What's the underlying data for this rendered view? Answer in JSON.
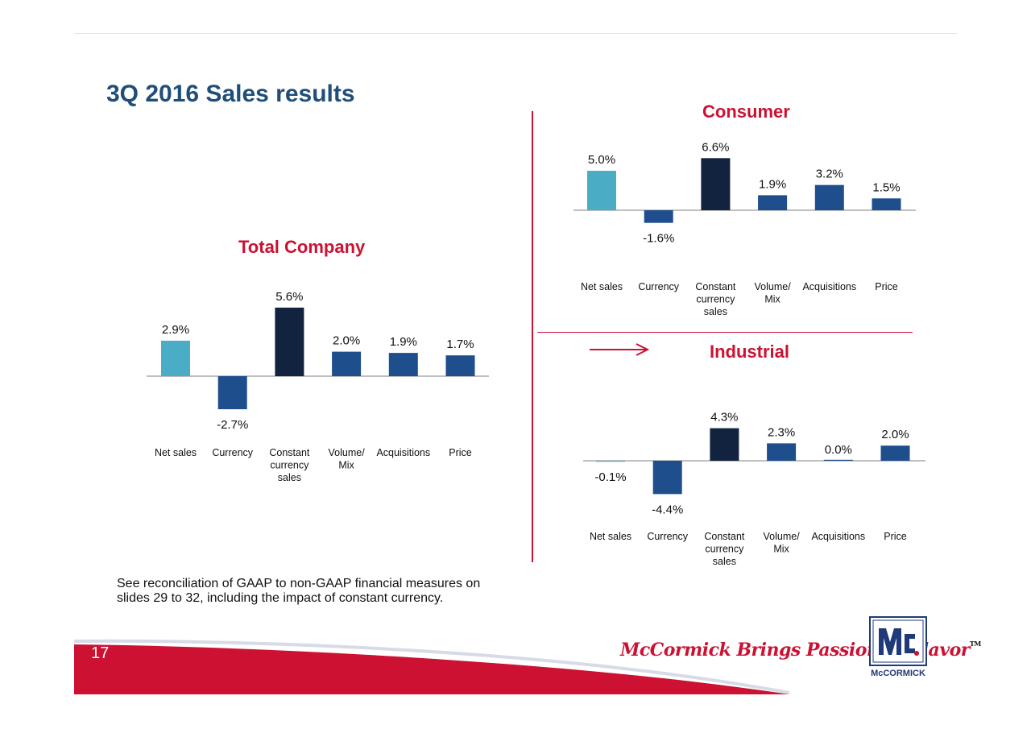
{
  "slide": {
    "title": "3Q 2016 Sales results",
    "footnote_line1": "See reconciliation of GAAP to non-GAAP financial measures on",
    "footnote_line2": "slides 29 to 32, including the impact of constant currency.",
    "page_number": "17",
    "tagline": "McCormick Brings Passion to Flavor",
    "tagline_mark": "TM",
    "logo_text": "McCORMICK"
  },
  "colors": {
    "net_sales": "#4bacc6",
    "constant_currency": "#12233f",
    "other": "#1f4e8c",
    "title_red": "#cc1133",
    "heading_blue": "#1f4e79"
  },
  "chart_data": [
    {
      "id": "total",
      "type": "bar",
      "title": "Total Company",
      "categories": [
        [
          "Net sales"
        ],
        [
          "Currency"
        ],
        [
          "Constant",
          "currency",
          "sales"
        ],
        [
          "Volume/",
          "Mix"
        ],
        [
          "Acquisitions"
        ],
        [
          "Price"
        ]
      ],
      "values": [
        2.9,
        -2.7,
        5.6,
        2.0,
        1.9,
        1.7
      ],
      "labels": [
        "2.9%",
        "-2.7%",
        "5.6%",
        "2.0%",
        "1.9%",
        "1.7%"
      ],
      "unit": "%",
      "grid": false,
      "legend": "none"
    },
    {
      "id": "consumer",
      "type": "bar",
      "title": "Consumer",
      "categories": [
        [
          "Net sales"
        ],
        [
          "Currency"
        ],
        [
          "Constant",
          "currency",
          "sales"
        ],
        [
          "Volume/",
          "Mix"
        ],
        [
          "Acquisitions"
        ],
        [
          "Price"
        ]
      ],
      "values": [
        5.0,
        -1.6,
        6.6,
        1.9,
        3.2,
        1.5
      ],
      "labels": [
        "5.0%",
        "-1.6%",
        "6.6%",
        "1.9%",
        "3.2%",
        "1.5%"
      ],
      "unit": "%",
      "grid": false,
      "legend": "none"
    },
    {
      "id": "industrial",
      "type": "bar",
      "title": "Industrial",
      "categories": [
        [
          "Net sales"
        ],
        [
          "Currency"
        ],
        [
          "Constant",
          "currency",
          "sales"
        ],
        [
          "Volume/",
          "Mix"
        ],
        [
          "Acquisitions"
        ],
        [
          "Price"
        ]
      ],
      "values": [
        -0.1,
        -4.4,
        4.3,
        2.3,
        0.0,
        2.0
      ],
      "labels": [
        "-0.1%",
        "-4.4%",
        "4.3%",
        "2.3%",
        "0.0%",
        "2.0%"
      ],
      "unit": "%",
      "grid": false,
      "legend": "none"
    }
  ]
}
